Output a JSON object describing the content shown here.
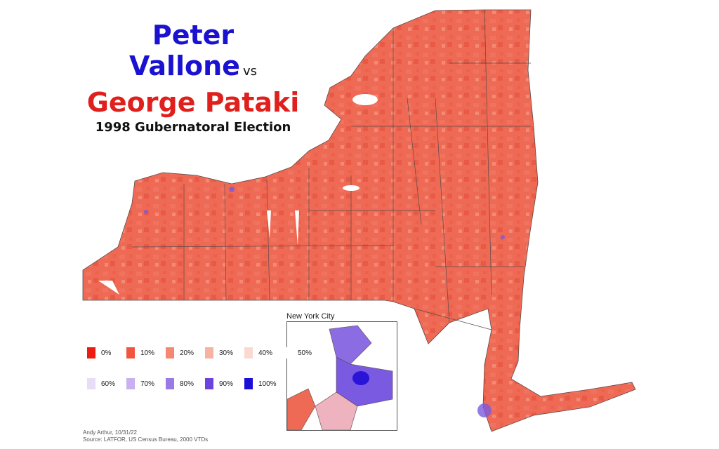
{
  "title": {
    "candidate_dem": "Peter Vallone",
    "vs": "vs",
    "candidate_rep": "George Pataki",
    "subtitle": "1998 Gubernatoral Election"
  },
  "colors": {
    "dem": "#1a12d0",
    "rep": "#e0201c",
    "map_fill": "#ef6a55",
    "map_stroke": "#5a4a48"
  },
  "inset": {
    "label": "New York City"
  },
  "legend": {
    "rows": [
      [
        {
          "label": "0%",
          "color": "#ee1b10"
        },
        {
          "label": "10%",
          "color": "#f1553f"
        },
        {
          "label": "20%",
          "color": "#f48870"
        },
        {
          "label": "30%",
          "color": "#f7b3a2"
        },
        {
          "label": "40%",
          "color": "#fad9d0"
        },
        {
          "label": "50%",
          "color": "#ffffff"
        }
      ],
      [
        {
          "label": "60%",
          "color": "#e8dcf6"
        },
        {
          "label": "70%",
          "color": "#c9b0f0"
        },
        {
          "label": "80%",
          "color": "#9a7be6"
        },
        {
          "label": "90%",
          "color": "#6a44dd"
        },
        {
          "label": "100%",
          "color": "#1b0fd6"
        }
      ]
    ]
  },
  "credit": {
    "author": "Andy Arthur, 10/31/22",
    "source": "Source: LATFOR, US Census Bureau, 2000 VTDs"
  }
}
